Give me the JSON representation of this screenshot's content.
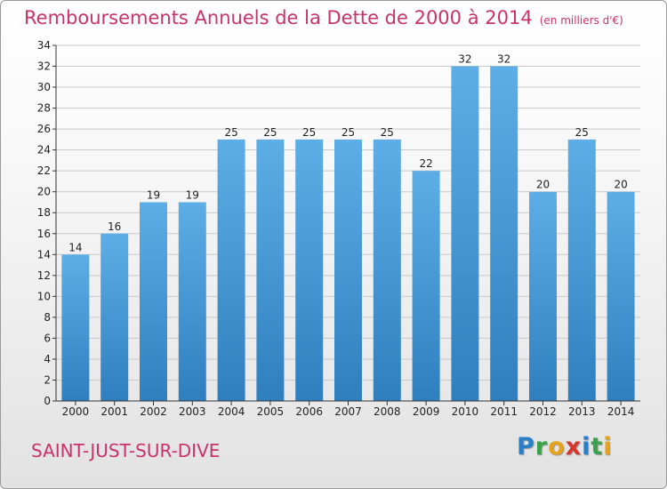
{
  "chart_data": {
    "type": "bar",
    "title": "Remboursements Annuels de la Dette de 2000 à 2014",
    "unit_note": "(en milliers d'€)",
    "categories": [
      "2000",
      "2001",
      "2002",
      "2003",
      "2004",
      "2005",
      "2006",
      "2007",
      "2008",
      "2009",
      "2010",
      "2011",
      "2012",
      "2013",
      "2014"
    ],
    "values": [
      14,
      16,
      19,
      19,
      25,
      25,
      25,
      25,
      25,
      22,
      32,
      32,
      20,
      25,
      20
    ],
    "ylim": [
      0,
      34
    ],
    "yticks": [
      0,
      2,
      4,
      6,
      8,
      10,
      12,
      14,
      16,
      18,
      20,
      22,
      24,
      26,
      28,
      30,
      32,
      34
    ],
    "grid": true,
    "colors": {
      "bar_top": "#5daee6",
      "bar_bottom": "#2f7fbf",
      "grid": "#c9c9c9",
      "axis": "#333333"
    }
  },
  "footer": {
    "commune": "SAINT-JUST-SUR-DIVE",
    "logo_letters": [
      "P",
      "r",
      "o",
      "x",
      "i",
      "t",
      "i"
    ],
    "logo_colors": [
      "#2a7fc8",
      "#3aa24a",
      "#e6a21a",
      "#d8362a",
      "#2a7fc8",
      "#3aa24a",
      "#e6a21a"
    ]
  }
}
